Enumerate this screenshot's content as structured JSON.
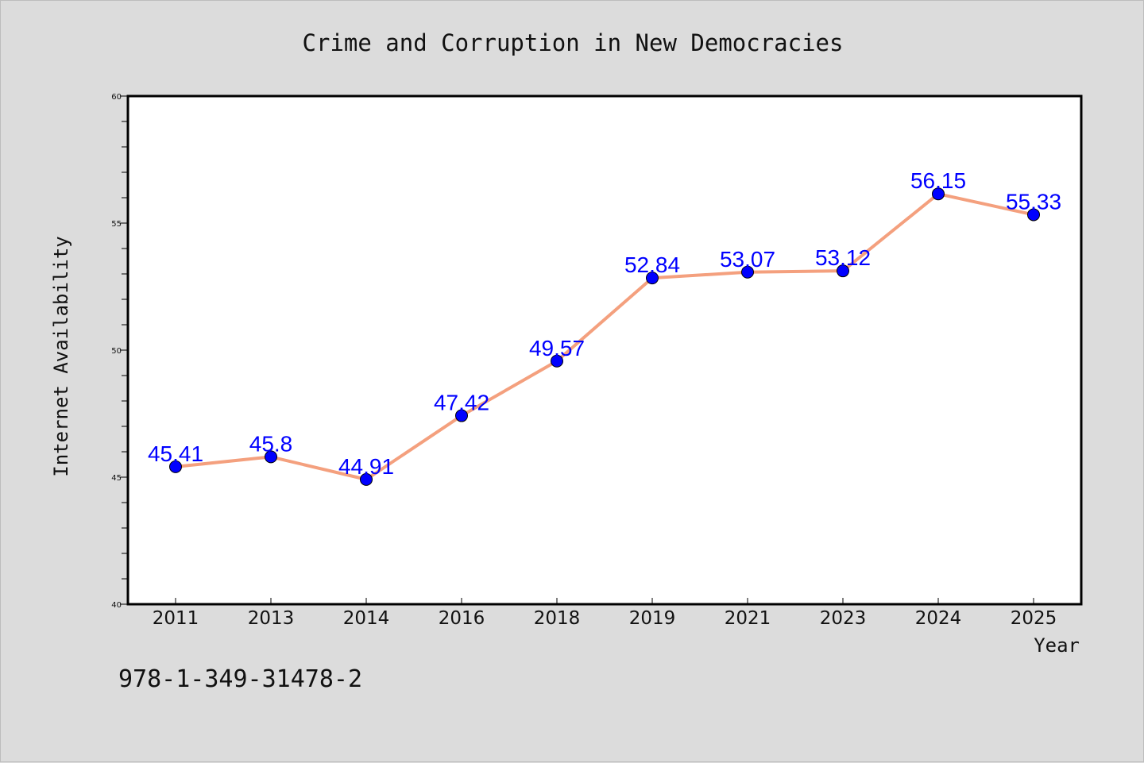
{
  "chart_data": {
    "type": "line",
    "title": "Crime and Corruption in New Democracies",
    "xlabel": "Year",
    "ylabel": "Internet Availability",
    "categories": [
      "2011",
      "2013",
      "2014",
      "2016",
      "2018",
      "2019",
      "2021",
      "2023",
      "2024",
      "2025"
    ],
    "series": [
      {
        "values": [
          45.41,
          45.8,
          44.91,
          47.42,
          49.57,
          52.84,
          53.07,
          53.12,
          56.15,
          55.33
        ],
        "labels": [
          "45.41",
          "45.8",
          "44.91",
          "47.42",
          "49.57",
          "52.84",
          "53.07",
          "53.12",
          "56.15",
          "55.33"
        ]
      }
    ],
    "ylim": [
      40,
      60
    ],
    "yticks": [
      40,
      45,
      50,
      55,
      60
    ],
    "grid": false,
    "line_color": "#f4a07e",
    "marker_color": "#0000ff",
    "label_color": "#0000ff",
    "background_color": "#dcdcdc",
    "plot_background": "#ffffff"
  },
  "footer_text": "978-1-349-31478-2"
}
